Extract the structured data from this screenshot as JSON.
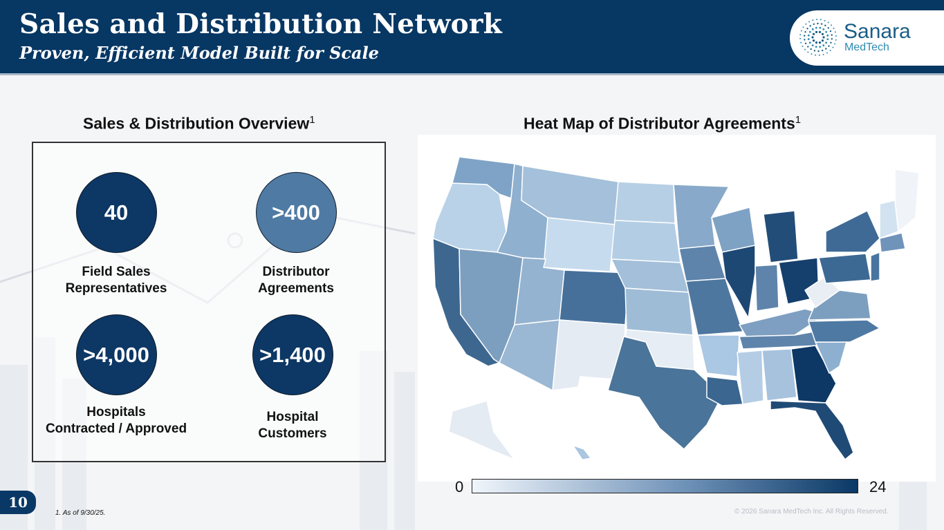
{
  "header": {
    "title": "Sales and Distribution Network",
    "subtitle": "Proven, Efficient Model Built for Scale"
  },
  "logo": {
    "name": "Sanara",
    "sub": "MedTech",
    "color": "#1b5d86"
  },
  "overview": {
    "heading": "Sales & Distribution Overview",
    "heading_sup": "1",
    "stats": [
      {
        "value": "40",
        "label_line1": "Field Sales",
        "label_line2": "Representatives"
      },
      {
        "value": ">400",
        "label_line1": "Distributor",
        "label_line2": "Agreements"
      },
      {
        "value": ">4,000",
        "label_line1": "Hospitals",
        "label_line2": "Contracted / Approved"
      },
      {
        "value": ">1,400",
        "label_line1": "Hospital",
        "label_line2": "Customers"
      }
    ]
  },
  "heatmap": {
    "heading": "Heat Map of Distributor Agreements",
    "heading_sup": "1",
    "legend_min": "0",
    "legend_max": "24",
    "color_low": "#f0f5fb",
    "color_high": "#0a3866"
  },
  "footer": {
    "page_number": "10",
    "footnote": "1.     As of 9/30/25.",
    "copyright": "© 2026 Sanara MedTech Inc. All Rights Reserved."
  }
}
